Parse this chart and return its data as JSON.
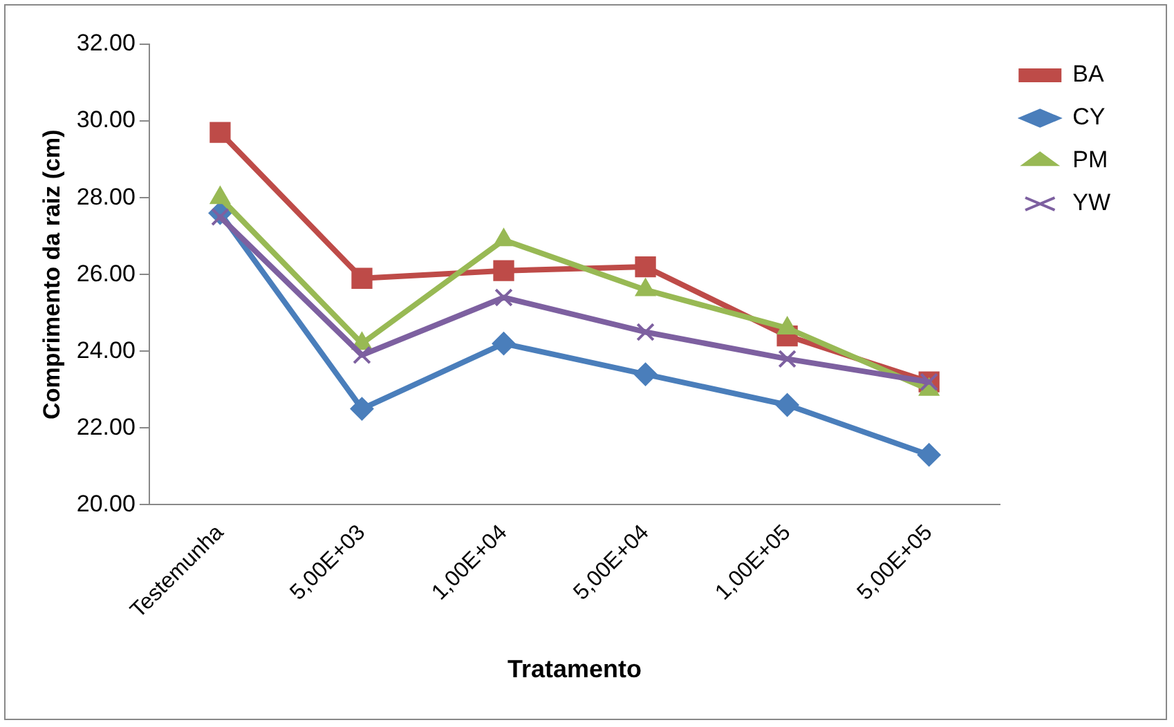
{
  "chart_data": {
    "type": "line",
    "xlabel": "Tratamento",
    "ylabel": "Comprimento da raiz (cm)",
    "categories": [
      "Testemunha",
      "5,00E+03",
      "1,00E+04",
      "5,00E+04",
      "1,00E+05",
      "5,00E+05"
    ],
    "series": [
      {
        "name": "BA",
        "color": "#be4b48",
        "marker": "square",
        "values": [
          29.7,
          25.9,
          26.1,
          26.2,
          24.4,
          23.2
        ]
      },
      {
        "name": "CY",
        "color": "#4a7ebb",
        "marker": "diamond",
        "values": [
          27.6,
          22.5,
          24.2,
          23.4,
          22.6,
          21.3
        ]
      },
      {
        "name": "PM",
        "color": "#98b954",
        "marker": "triangle",
        "values": [
          28.0,
          24.2,
          26.9,
          25.6,
          24.6,
          23.0
        ]
      },
      {
        "name": "YW",
        "color": "#7d60a0",
        "marker": "cross",
        "values": [
          27.5,
          23.9,
          25.4,
          24.5,
          23.8,
          23.2
        ]
      }
    ],
    "ylim": [
      20,
      32
    ],
    "yticks": [
      {
        "value": 20,
        "label": "20.00"
      },
      {
        "value": 22,
        "label": "22.00"
      },
      {
        "value": 24,
        "label": "24.00"
      },
      {
        "value": 26,
        "label": "26.00"
      },
      {
        "value": 28,
        "label": "28.00"
      },
      {
        "value": 30,
        "label": "30.00"
      },
      {
        "value": 32,
        "label": "32.00"
      }
    ],
    "grid": false,
    "legend": "right",
    "line_style": "solid"
  }
}
